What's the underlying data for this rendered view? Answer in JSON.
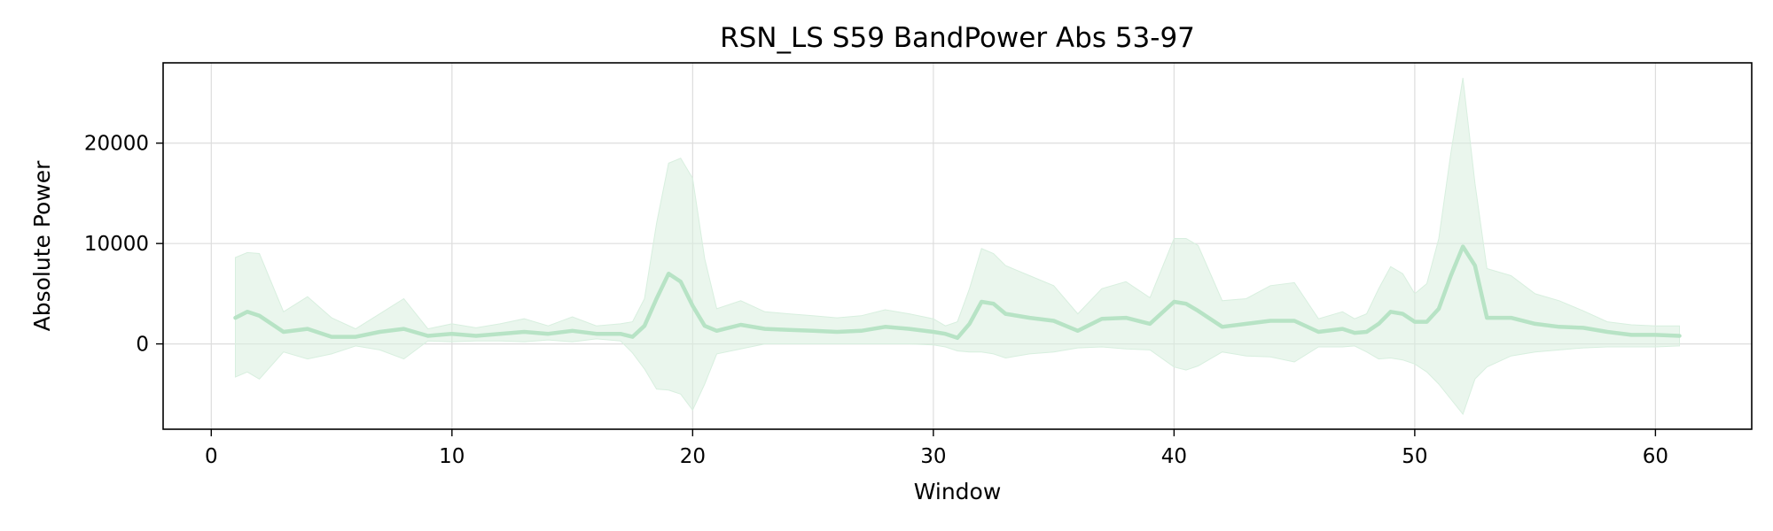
{
  "chart_data": {
    "type": "line",
    "title": "RSN_LS S59 BandPower Abs 53-97",
    "xlabel": "Window",
    "ylabel": "Absolute Power",
    "xlim": [
      -2,
      64
    ],
    "ylim": [
      -8500,
      28000
    ],
    "xticks": [
      0,
      10,
      20,
      30,
      40,
      50,
      60
    ],
    "yticks": [
      0,
      10000,
      20000
    ],
    "grid": true,
    "colors": {
      "line": "#b7e3c5",
      "band": "#d8efdf",
      "axes": "#000000",
      "grid": "#dddddd"
    },
    "series": [
      {
        "x": [
          1,
          1.5,
          2,
          3,
          4,
          5,
          6,
          7,
          8,
          9,
          10,
          11,
          12,
          13,
          14,
          15,
          16,
          17,
          17.5,
          18,
          18.5,
          19,
          19.5,
          20,
          20.5,
          21,
          22,
          23,
          24,
          25,
          26,
          27,
          28,
          29,
          30,
          30.5,
          31,
          31.5,
          32,
          32.5,
          33,
          34,
          35,
          36,
          37,
          38,
          39,
          40,
          40.5,
          41,
          42,
          43,
          44,
          45,
          46,
          47,
          47.5,
          48,
          48.5,
          49,
          49.5,
          50,
          50.5,
          51,
          51.5,
          52,
          52.5,
          53,
          54,
          55,
          56,
          57,
          58,
          59,
          60,
          61
        ],
        "y": [
          2600,
          3200,
          2800,
          1200,
          1500,
          700,
          700,
          1200,
          1500,
          800,
          1000,
          800,
          1000,
          1200,
          1000,
          1300,
          1000,
          1000,
          700,
          1800,
          4500,
          7000,
          6200,
          3800,
          1800,
          1300,
          1900,
          1500,
          1400,
          1300,
          1200,
          1300,
          1700,
          1500,
          1200,
          1000,
          600,
          2000,
          4200,
          4000,
          3000,
          2600,
          2300,
          1300,
          2500,
          2600,
          2000,
          4200,
          4000,
          3300,
          1700,
          2000,
          2300,
          2300,
          1200,
          1500,
          1100,
          1200,
          2000,
          3200,
          3000,
          2200,
          2200,
          3500,
          6800,
          9700,
          7800,
          2600,
          2600,
          2000,
          1700,
          1600,
          1200,
          900,
          900,
          800
        ],
        "upper": [
          8600,
          9100,
          9000,
          3200,
          4700,
          2600,
          1500,
          3000,
          4500,
          1500,
          2000,
          1600,
          2000,
          2500,
          1800,
          2700,
          1800,
          2000,
          2200,
          4500,
          12000,
          18000,
          18500,
          16500,
          8500,
          3500,
          4300,
          3200,
          3000,
          2800,
          2600,
          2800,
          3400,
          3000,
          2500,
          1800,
          2200,
          5500,
          9500,
          9000,
          7800,
          6800,
          5800,
          3000,
          5500,
          6200,
          4600,
          10500,
          10500,
          9800,
          4300,
          4500,
          5800,
          6100,
          2500,
          3200,
          2500,
          3000,
          5500,
          7700,
          7000,
          5000,
          6000,
          10500,
          19000,
          26500,
          16000,
          7500,
          6800,
          5000,
          4300,
          3300,
          2200,
          1900,
          1800,
          1800
        ],
        "lower": [
          -3300,
          -2800,
          -3500,
          -800,
          -1500,
          -1000,
          -200,
          -600,
          -1500,
          300,
          200,
          300,
          300,
          200,
          400,
          200,
          500,
          300,
          -900,
          -2500,
          -4500,
          -4600,
          -5000,
          -6600,
          -4000,
          -1000,
          -500,
          0,
          0,
          0,
          0,
          0,
          0,
          0,
          -100,
          -300,
          -700,
          -800,
          -800,
          -1000,
          -1400,
          -1000,
          -800,
          -400,
          -300,
          -500,
          -600,
          -2300,
          -2600,
          -2200,
          -800,
          -1200,
          -1300,
          -1800,
          -300,
          -300,
          -200,
          -800,
          -1500,
          -1400,
          -1600,
          -2000,
          -2800,
          -4000,
          -5500,
          -7000,
          -3500,
          -2300,
          -1200,
          -800,
          -600,
          -400,
          -300,
          -300,
          -300,
          -200
        ]
      }
    ]
  }
}
